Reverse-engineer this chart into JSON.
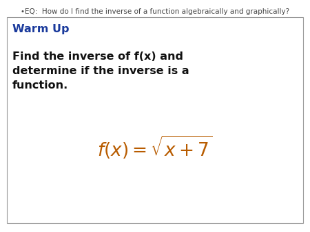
{
  "eq_text": "•EQ:  How do I find the inverse of a function algebraically and graphically?",
  "warm_up_label": "Warm Up",
  "body_text": "Find the inverse of f(x) and\ndetermine if the inverse is a\nfunction.",
  "formula": "$f(x) = \\sqrt{x + 7}$",
  "bg_color": "#ffffff",
  "box_color": "#ffffff",
  "box_edge_color": "#999999",
  "eq_color": "#444444",
  "warm_up_color": "#1a3a9c",
  "body_color": "#111111",
  "formula_color": "#b85c00",
  "eq_fontsize": 7.5,
  "warm_up_fontsize": 11.5,
  "body_fontsize": 11.5,
  "formula_fontsize": 19,
  "fig_width": 4.5,
  "fig_height": 3.38,
  "dpi": 100
}
